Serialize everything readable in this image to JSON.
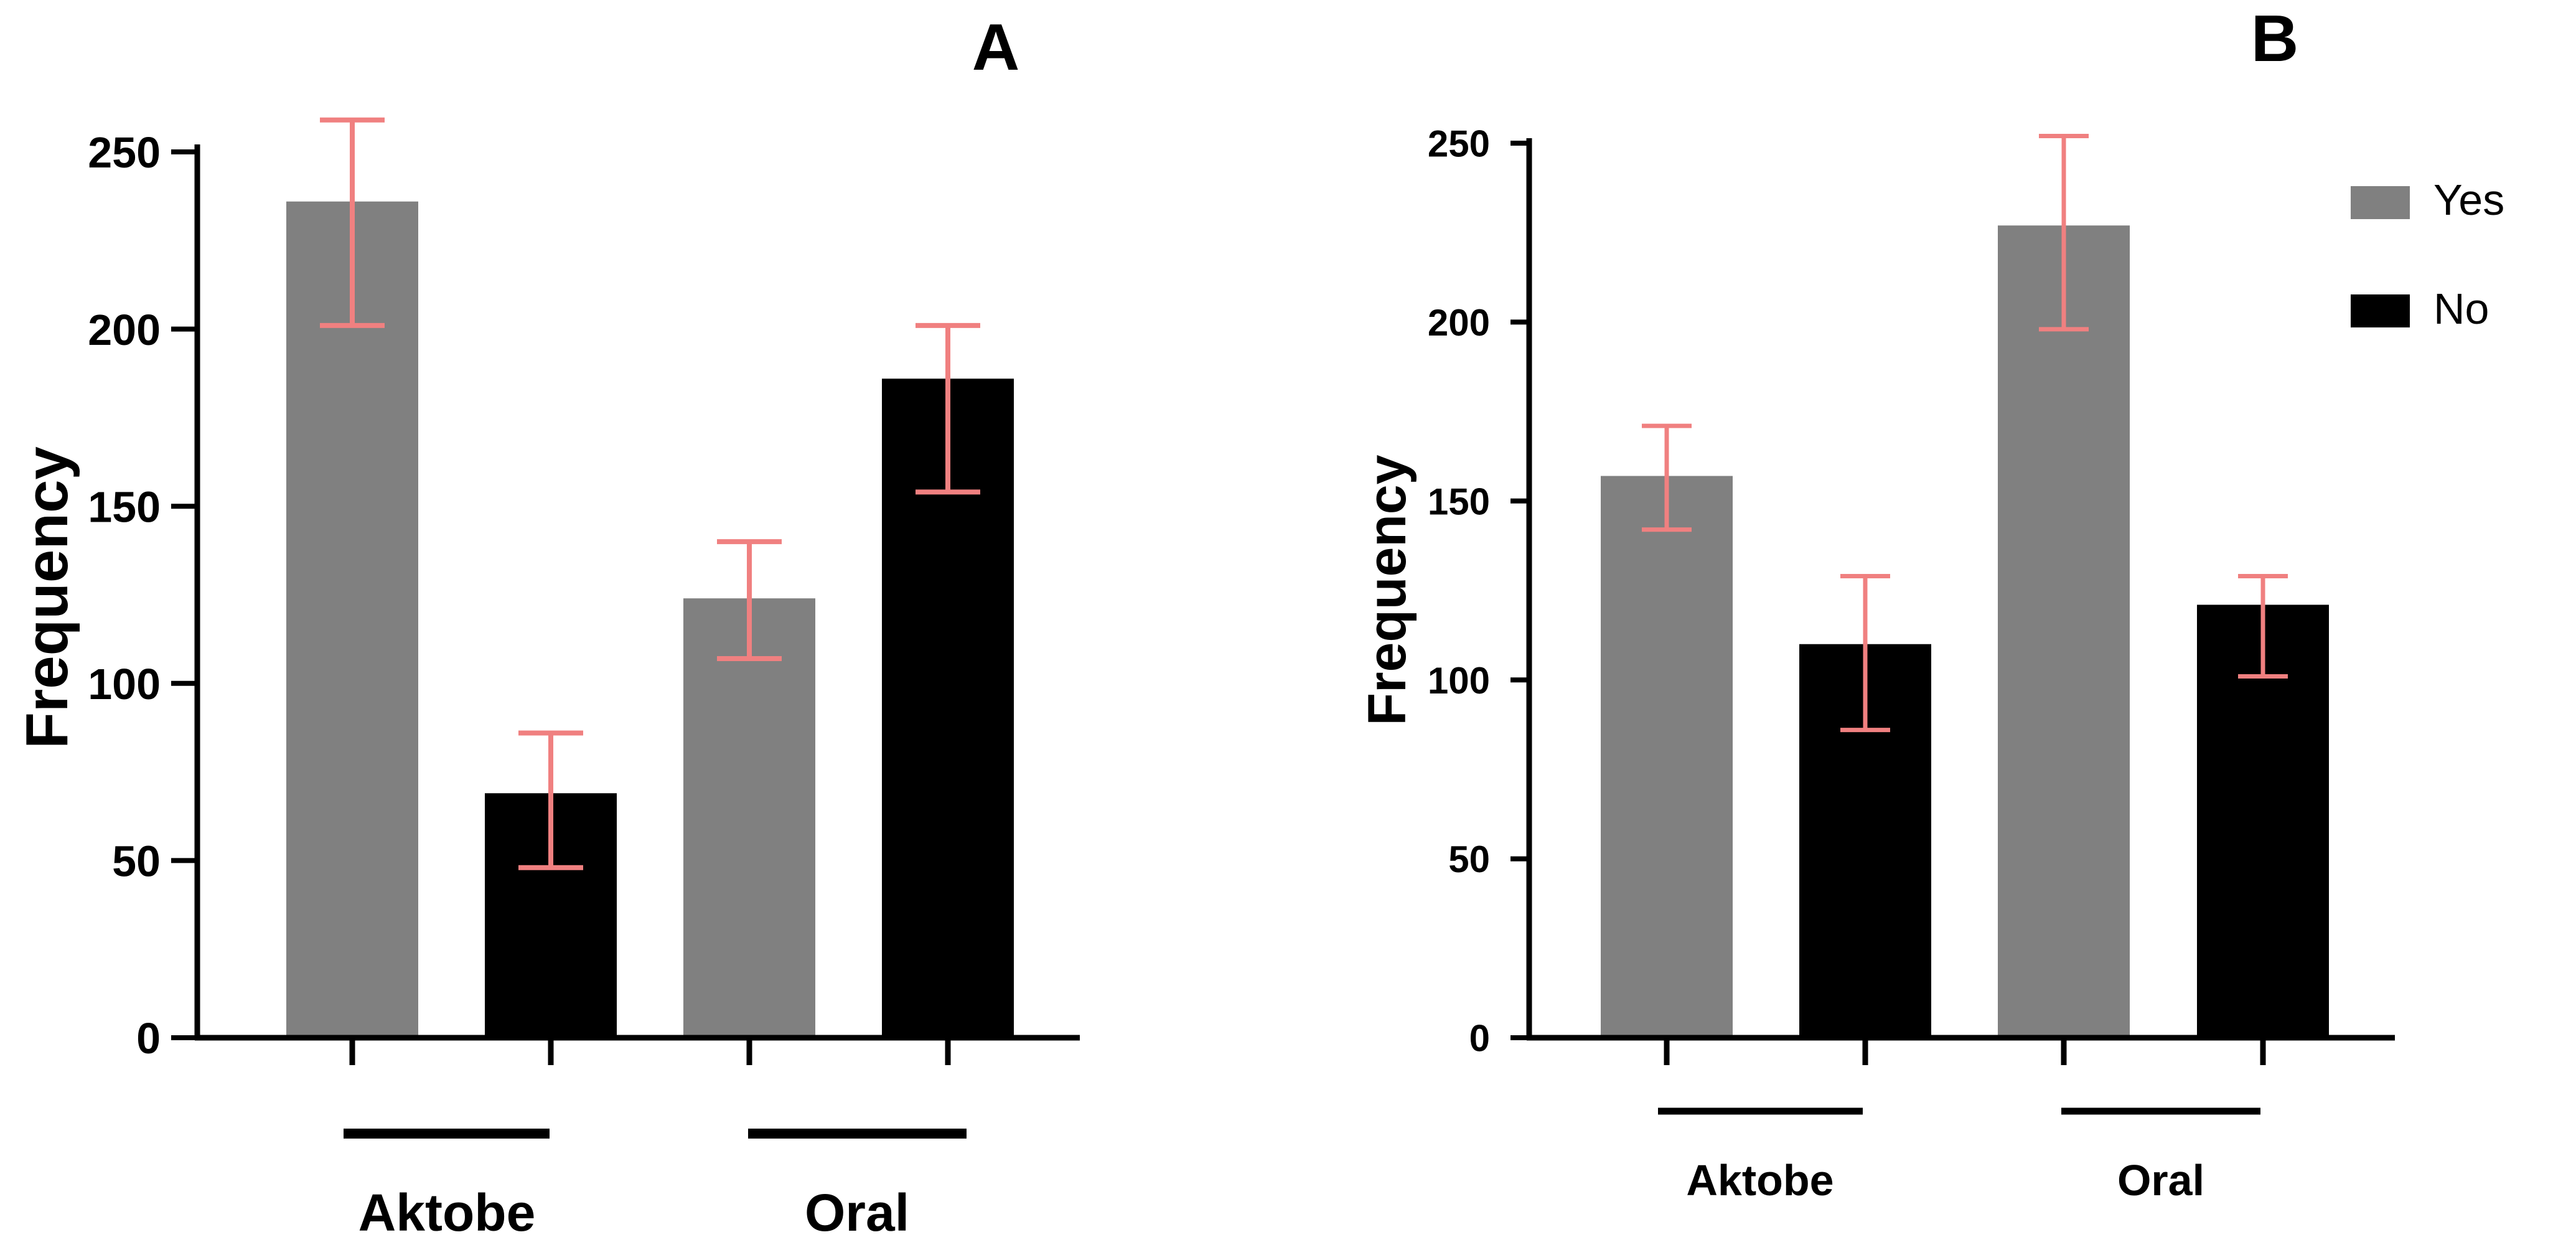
{
  "chart_data": [
    {
      "panel": "A",
      "type": "bar",
      "title": "A",
      "ylabel": "Frequency",
      "ylim": [
        0,
        250
      ],
      "yticks": [
        0,
        50,
        100,
        150,
        200,
        250
      ],
      "groups": [
        "Aktobe",
        "Oral"
      ],
      "series": [
        {
          "name": "Yes",
          "values": [
            236,
            124
          ],
          "errors_low": [
            201,
            107
          ],
          "errors_high": [
            259,
            140
          ]
        },
        {
          "name": "No",
          "values": [
            69,
            186
          ],
          "errors_low": [
            48,
            154
          ],
          "errors_high": [
            86,
            201
          ]
        }
      ]
    },
    {
      "panel": "B",
      "type": "bar",
      "title": "B",
      "ylabel": "Frequency",
      "ylim": [
        0,
        250
      ],
      "yticks": [
        0,
        50,
        100,
        150,
        200,
        250
      ],
      "groups": [
        "Aktobe",
        "Oral"
      ],
      "series": [
        {
          "name": "Yes",
          "values": [
            157,
            227
          ],
          "errors_low": [
            142,
            198
          ],
          "errors_high": [
            171,
            252
          ]
        },
        {
          "name": "No",
          "values": [
            110,
            121
          ],
          "errors_low": [
            86,
            101
          ],
          "errors_high": [
            129,
            129
          ]
        }
      ],
      "legend": {
        "position": "top-right",
        "items": [
          {
            "label": "Yes",
            "color": "#808080"
          },
          {
            "label": "No",
            "color": "#000000"
          }
        ]
      }
    }
  ],
  "colors": {
    "yes": "#808080",
    "no": "#000000",
    "error_bar": "#F08080",
    "axis": "#000000"
  }
}
